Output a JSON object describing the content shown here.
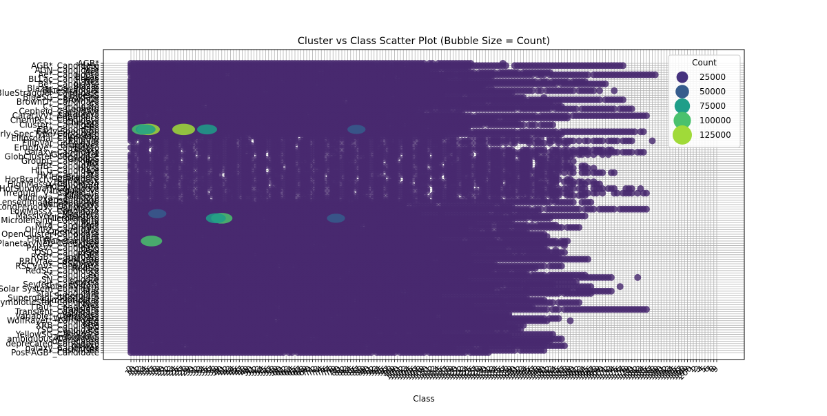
{
  "chart_data": {
    "type": "scatter",
    "title": "Cluster vs Class Scatter Plot (Bubble Size = Count)",
    "xlabel": "Class",
    "ylabel": "",
    "grid": true,
    "legend": {
      "title": "Count",
      "placement": "upper-right",
      "entries": [
        {
          "label": "25000",
          "value": 25000,
          "color": "#46327e"
        },
        {
          "label": "50000",
          "value": 50000,
          "color": "#365c8d"
        },
        {
          "label": "75000",
          "value": 75000,
          "color": "#1f9e89"
        },
        {
          "label": "100000",
          "value": 100000,
          "color": "#4ac16d"
        },
        {
          "label": "125000",
          "value": 125000,
          "color": "#a0da39"
        }
      ]
    },
    "colors": {
      "dense": "#482a6f",
      "base": "#440154",
      "grid": "#b0b0b0"
    },
    "x_ticks": [
      "0",
      "10",
      "11",
      "12",
      "13",
      "14",
      "15",
      "16",
      "17",
      "18",
      "19",
      "20",
      "21",
      "22",
      "23",
      "24",
      "25",
      "26",
      "27",
      "28",
      "29",
      "30",
      "31",
      "32",
      "33",
      "34",
      "35",
      "36",
      "37",
      "38",
      "39",
      "40",
      "41",
      "42",
      "43",
      "44",
      "45",
      "46",
      "47",
      "48",
      "49",
      "50",
      "51",
      "52",
      "53",
      "54",
      "55",
      "56",
      "57",
      "58",
      "59",
      "60",
      "61",
      "62",
      "63",
      "64",
      "65",
      "66",
      "67",
      "68",
      "69",
      "70",
      "71",
      "72",
      "73",
      "74",
      "75",
      "76",
      "77",
      "78",
      "79",
      "80",
      "81",
      "82",
      "83",
      "84",
      "85",
      "86",
      "87",
      "88",
      "89",
      "90",
      "91",
      "92",
      "93",
      "94",
      "95",
      "96",
      "97",
      "98",
      "99",
      "100",
      "101",
      "102",
      "103",
      "104",
      "105",
      "106",
      "107",
      "108",
      "109",
      "110",
      "111",
      "112",
      "113",
      "114",
      "115",
      "116",
      "117",
      "118",
      "119",
      "120",
      "121",
      "122",
      "123",
      "124",
      "125",
      "126",
      "127",
      "128",
      "129",
      "130",
      "131",
      "132",
      "133",
      "134",
      "135",
      "136",
      "137",
      "138",
      "139",
      "140",
      "141",
      "142",
      "143",
      "144",
      "145",
      "146",
      "147",
      "148",
      "149",
      "150",
      "151",
      "152",
      "153",
      "154",
      "155",
      "156",
      "157",
      "158",
      "159",
      "160",
      "161",
      "162",
      "163",
      "164",
      "165",
      "166",
      "167",
      "168",
      "169",
      "170",
      "171",
      "172",
      "173",
      "174",
      "175",
      "176",
      "177",
      "178",
      "179",
      "180",
      "181",
      "182",
      "183",
      "184",
      "185",
      "186",
      "187",
      "188",
      "189",
      "190",
      "191",
      "192",
      "193",
      "194",
      "195",
      "196",
      "197",
      "198",
      "199",
      "200",
      "1",
      "2",
      "3",
      "4",
      "5",
      "6",
      "7",
      "8",
      "9"
    ],
    "y_ticks": [
      "AGB*",
      "AGB*_Candidate",
      "AGN",
      "AGN_Candidate",
      "Ae*",
      "Ae*_Candidate",
      "BLLac",
      "BLLac_Candidate",
      "Be*",
      "Be*_Candidate",
      "Blazar",
      "Blazar_Candidate",
      "BlueStraggler",
      "BlueStraggler_Candidate",
      "BlueSG",
      "BlueSG_Candidate",
      "BrownD*",
      "BrownD*_Candidate",
      "C*",
      "C*_Candidate",
      "Cepheid",
      "Cepheid_Candidate",
      "CataclyV*",
      "CataclyV*_Candidate",
      "ChemPec*",
      "ChemPec*_Candidate",
      "Cluster*",
      "Cluster*_Candidate",
      "EB*",
      "EB*_Candidate",
      "Early-SpecType",
      "Early-SpecType_Candidate",
      "Ellipsoidal",
      "Ellipsoidal_Candidate",
      "EllipVar",
      "EllipVar_Candidate",
      "Eruptive*",
      "Eruptive*_Candidate",
      "Galaxy",
      "Galaxy_Candidate",
      "GlobCluster",
      "GlobCluster_Candidate",
      "GroupG",
      "GroupG_Candidate",
      "HB*",
      "HB*_Candidate",
      "HII_G",
      "HII_G_Candidate",
      "HV*",
      "HV*_Candidate",
      "HorBranch*",
      "HorBranch*_Candidate",
      "HighMassX",
      "HighMassX_Candidate",
      "HotSubdwarf",
      "HotSubdwarf_Candidate",
      "Irregular_V*",
      "Irregular_V*_Candidate",
      "Kilonova",
      "Kilonova_Candidate",
      "LensedImage",
      "LensedImage_Candidate",
      "LongPeriodV*",
      "LongPeriodV*_Candidate",
      "LowMassX",
      "LowMassX_Candidate",
      "Massive*",
      "Massive*_Candidate",
      "Microlensing",
      "Microlensing_Candidate",
      "Mira",
      "Mira_Candidate",
      "OH/IR*",
      "OH/IR*_Candidate",
      "OpenCluster",
      "OpenCluster_Candidate",
      "Planet",
      "Planet_Candidate",
      "PlanetaryNeb",
      "PlanetaryNeb_Candidate",
      "PulsV*",
      "PulsV*_Candidate",
      "QSO",
      "QSO_Candidate",
      "RGB*",
      "RGB*_Candidate",
      "RRLyrae",
      "RRLyrae_Candidate",
      "RSCVnV*",
      "RSCVnV*_Candidate",
      "RedSG",
      "RedSG_Candidate",
      "S*",
      "S*_Candidate",
      "SN",
      "SN_Candidate",
      "Seyfert",
      "Seyfert_Candidate",
      "Solar System",
      "Solar System_Candidate",
      "Star",
      "Star_Candidate",
      "Supergiant",
      "Supergiant_Candidate",
      "SymbioticStar",
      "SymbioticStar_Candidate",
      "TTau*",
      "TTau*_Candidate",
      "Transient",
      "Transient_Candidate",
      "Variable*",
      "Variable*_Candidate",
      "WolfRayet*",
      "WolfRayet*_Candidate",
      "XRB",
      "XRB_Candidate",
      "YSO",
      "YSO_Candidate",
      "YellowSG",
      "YellowSG_Candidate",
      "ambiguous",
      "ambiguous_Candidate",
      "deprecated",
      "deprecated_Candidate",
      "galaxy",
      "galaxy_Candidate",
      "Post-AGB*",
      "Post-AGB*_Candidate"
    ],
    "highlights": [
      {
        "class": "13",
        "cluster": "EB*_Candidate",
        "count": 100000
      },
      {
        "class": "15",
        "cluster": "EB*_Candidate",
        "count": 125000
      },
      {
        "class": "27",
        "cluster": "EB*_Candidate",
        "count": 125000
      },
      {
        "class": "14",
        "cluster": "EB*_Candidate",
        "count": 75000
      },
      {
        "class": "35",
        "cluster": "EB*_Candidate",
        "count": 75000
      },
      {
        "class": "86",
        "cluster": "EB*_Candidate",
        "count": 50000
      },
      {
        "class": "40",
        "cluster": "Microlensing",
        "count": 100000
      },
      {
        "class": "38",
        "cluster": "Microlensing",
        "count": 75000
      },
      {
        "class": "16",
        "cluster": "PlanetaryNeb",
        "count": 100000
      },
      {
        "class": "18",
        "cluster": "Massive*",
        "count": 50000
      },
      {
        "class": "79",
        "cluster": "Microlensing",
        "count": 50000
      }
    ]
  }
}
